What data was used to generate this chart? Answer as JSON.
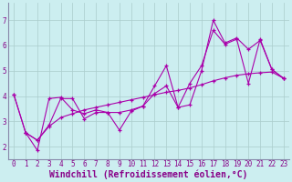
{
  "background_color": "#cceef0",
  "grid_color": "#aacccc",
  "line_color": "#aa00aa",
  "xlabel": "Windchill (Refroidissement éolien,°C)",
  "xlabel_color": "#880088",
  "ylabel_color": "#880088",
  "xlim": [
    -0.5,
    23.5
  ],
  "ylim": [
    1.5,
    7.7
  ],
  "yticks": [
    2,
    3,
    4,
    5,
    6,
    7
  ],
  "xticks": [
    0,
    1,
    2,
    3,
    4,
    5,
    6,
    7,
    8,
    9,
    10,
    11,
    12,
    13,
    14,
    15,
    16,
    17,
    18,
    19,
    20,
    21,
    22,
    23
  ],
  "series1_x": [
    0,
    1,
    2,
    3,
    4,
    5,
    6,
    7,
    8,
    9,
    10,
    11,
    12,
    13,
    14,
    15,
    16,
    17,
    18,
    19,
    20,
    21,
    22,
    23
  ],
  "series1_y": [
    4.05,
    2.55,
    1.85,
    3.9,
    3.95,
    3.45,
    3.3,
    3.45,
    3.35,
    2.65,
    3.4,
    3.6,
    4.4,
    5.2,
    3.55,
    3.65,
    5.0,
    7.0,
    6.1,
    6.3,
    5.85,
    6.2,
    5.05,
    4.7
  ],
  "series2_x": [
    0,
    1,
    2,
    3,
    4,
    5,
    6,
    7,
    8,
    9,
    10,
    11,
    12,
    13,
    14,
    15,
    16,
    17,
    18,
    19,
    20,
    21,
    22,
    23
  ],
  "series2_y": [
    4.05,
    2.55,
    2.25,
    2.85,
    3.9,
    3.9,
    3.1,
    3.35,
    3.35,
    3.35,
    3.45,
    3.6,
    4.1,
    4.4,
    3.55,
    4.5,
    5.2,
    6.6,
    6.05,
    6.25,
    4.5,
    6.25,
    5.05,
    4.7
  ],
  "series3_x": [
    1,
    2,
    3,
    4,
    5,
    6,
    7,
    8,
    9,
    10,
    11,
    12,
    13,
    14,
    15,
    16,
    17,
    18,
    19,
    20,
    21,
    22,
    23
  ],
  "series3_y": [
    2.55,
    2.25,
    2.8,
    3.15,
    3.3,
    3.45,
    3.55,
    3.65,
    3.75,
    3.85,
    3.95,
    4.05,
    4.15,
    4.22,
    4.32,
    4.45,
    4.6,
    4.72,
    4.82,
    4.88,
    4.92,
    4.95,
    4.7
  ],
  "tick_fontsize": 5.5,
  "xlabel_fontsize": 7.0
}
